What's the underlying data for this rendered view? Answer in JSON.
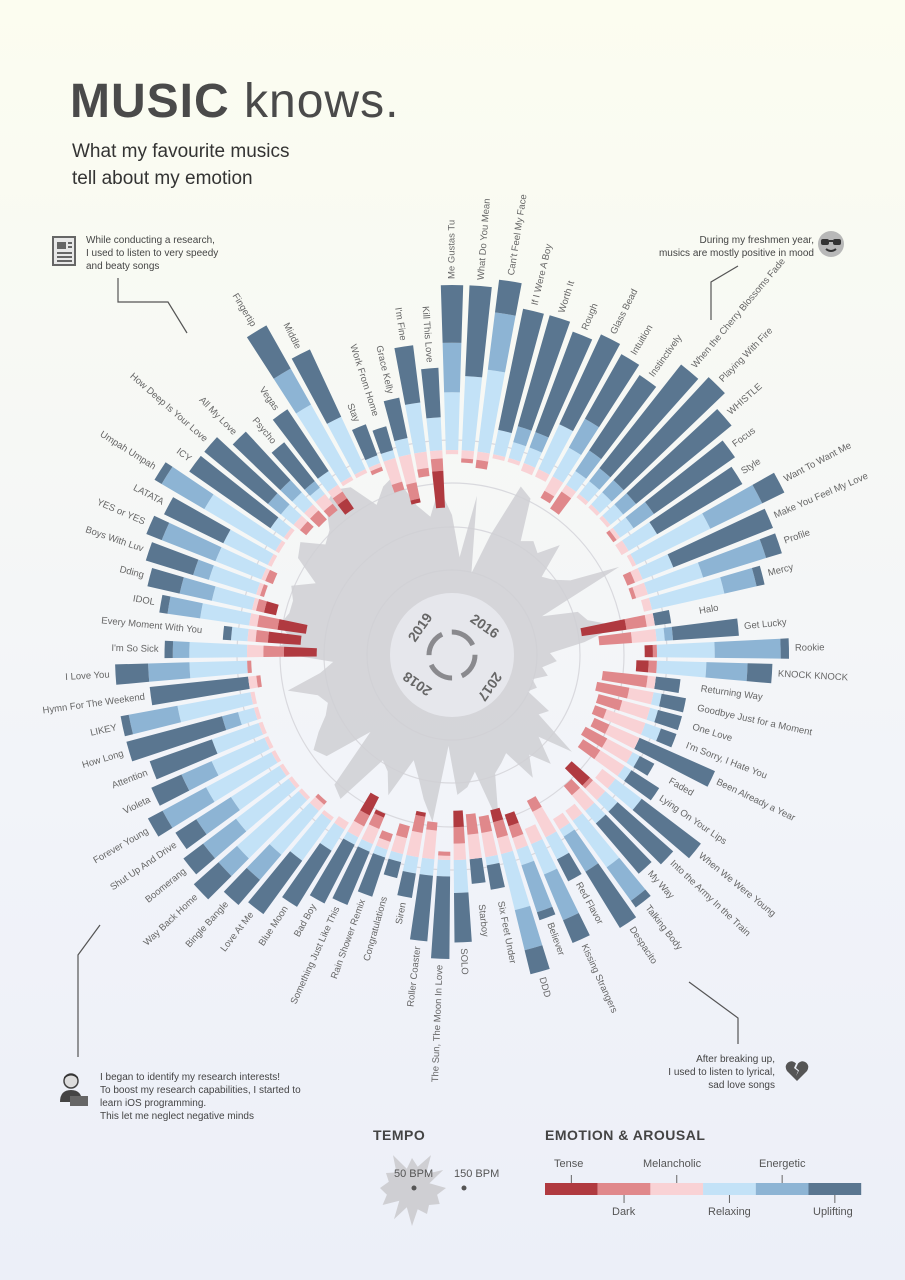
{
  "header": {
    "title_bold": "MUSIC",
    "title_rest": "knows.",
    "subtitle_line1": "What my favourite musics",
    "subtitle_line2": "tell about my emotion"
  },
  "notes": {
    "top_left": [
      "While conducting a research,",
      "I used to listen to very speedy",
      "and beaty songs"
    ],
    "top_right": [
      "During my freshmen year,",
      "musics are mostly positive in mood"
    ],
    "bottom_left": [
      "I began to identify my research interests!",
      "To boost my research capabilities, I started to",
      "learn iOS programming.",
      "This let me neglect negative minds"
    ],
    "bottom_right": [
      "After breaking up,",
      "I used to listen to lyrical,",
      "sad love songs"
    ]
  },
  "years": [
    "2016",
    "2017",
    "2018",
    "2019"
  ],
  "legend": {
    "tempo_title": "TEMPO",
    "tempo_low": "50 BPM",
    "tempo_high": "150 BPM",
    "emotion_title": "EMOTION & AROUSAL",
    "upper_labels": [
      "Tense",
      "Melancholic",
      "Energetic"
    ],
    "lower_labels": [
      "Dark",
      "Relaxing",
      "Uplifting"
    ]
  },
  "colors": {
    "tense": "#b03a40",
    "dark": "#e0888b",
    "melancholic": "#f9d2d5",
    "relaxing": "#c3e2f7",
    "energetic": "#8db4d4",
    "uplifting": "#5a7690",
    "tempo": "#cfcfd3"
  },
  "chart_data": {
    "type": "radial-bar",
    "title": "MUSIC knows.",
    "emotion_categories": [
      "Tense",
      "Dark",
      "Melancholic",
      "Relaxing",
      "Energetic",
      "Uplifting"
    ],
    "tempo_range_bpm": [
      50,
      150
    ],
    "songs": [
      {
        "name": "Me Gustas Tu",
        "neg": [
          0,
          0,
          0.05
        ],
        "pos": [
          0.35,
          0.3,
          0.35
        ],
        "bpm": 100
      },
      {
        "name": "What Do You Mean",
        "neg": [
          0,
          0.05,
          0.1
        ],
        "pos": [
          0.45,
          0,
          0.55
        ],
        "bpm": 70
      },
      {
        "name": "Can't Feel My Face",
        "neg": [
          0,
          0.1,
          0.1
        ],
        "pos": [
          0.5,
          0.35,
          0.2
        ],
        "bpm": 115
      },
      {
        "name": "If I Were A Boy",
        "neg": [
          0,
          0,
          0.05
        ],
        "pos": [
          0.15,
          0,
          0.75
        ],
        "bpm": 60
      },
      {
        "name": "Worth It",
        "neg": [
          0,
          0,
          0.05
        ],
        "pos": [
          0.1,
          0.1,
          0.7
        ],
        "bpm": 90
      },
      {
        "name": "Rough",
        "neg": [
          0,
          0,
          0.1
        ],
        "pos": [
          0.1,
          0.1,
          0.65
        ],
        "bpm": 130
      },
      {
        "name": "Glass Bead",
        "neg": [
          0,
          0,
          0.1
        ],
        "pos": [
          0.3,
          0,
          0.6
        ],
        "bpm": 125
      },
      {
        "name": "Intuition",
        "neg": [
          0,
          0.1,
          0.2
        ],
        "pos": [
          0.2,
          0.2,
          0.45
        ],
        "bpm": 95
      },
      {
        "name": "Instinctively",
        "neg": [
          0,
          0.25,
          0.1
        ],
        "pos": [
          0.1,
          0.15,
          0.55
        ],
        "bpm": 100
      },
      {
        "name": "When the Cherry Blossoms Fade",
        "neg": [
          0,
          0,
          0.05
        ],
        "pos": [
          0.1,
          0.1,
          0.8
        ],
        "bpm": 95
      },
      {
        "name": "Playing With Fire",
        "neg": [
          0,
          0,
          0.05
        ],
        "pos": [
          0.1,
          0.1,
          0.85
        ],
        "bpm": 110
      },
      {
        "name": "WHISTLE",
        "neg": [
          0,
          0,
          0.05
        ],
        "pos": [
          0.1,
          0.1,
          0.75
        ],
        "bpm": 85
      },
      {
        "name": "Focus",
        "neg": [
          0,
          0.05,
          0.05
        ],
        "pos": [
          0.1,
          0.15,
          0.6
        ],
        "bpm": 90
      },
      {
        "name": "Style",
        "neg": [
          0,
          0,
          0.1
        ],
        "pos": [
          0.2,
          0,
          0.6
        ],
        "bpm": 100
      },
      {
        "name": "Want To Want Me",
        "neg": [
          0,
          0,
          0.05
        ],
        "pos": [
          0.5,
          0.35,
          0.15
        ],
        "bpm": 135
      },
      {
        "name": "Make You Feel My Love",
        "neg": [
          0,
          0.1,
          0.1
        ],
        "pos": [
          0.2,
          0,
          0.65
        ],
        "bpm": 70
      },
      {
        "name": "Profile",
        "neg": [
          0,
          0.05,
          0.15
        ],
        "pos": [
          0.35,
          0.4,
          0.1
        ],
        "bpm": 95
      },
      {
        "name": "Mercy",
        "neg": [
          0,
          0,
          0.1
        ],
        "pos": [
          0.45,
          0.2,
          0.05
        ],
        "bpm": 100
      },
      {
        "name": "Halo",
        "neg": [
          0.55,
          0.25,
          0.1
        ],
        "pos": [
          0,
          0,
          0.1
        ],
        "bpm": 120
      },
      {
        "name": "Get Lucky",
        "neg": [
          0,
          0.4,
          0.3
        ],
        "pos": [
          0.05,
          0.05,
          0.4
        ],
        "bpm": 95
      },
      {
        "name": "Rookie",
        "neg": [
          0.1,
          0.05,
          0
        ],
        "pos": [
          0.35,
          0.4,
          0.05
        ],
        "bpm": 70
      },
      {
        "name": "KNOCK KNOCK",
        "neg": [
          0.15,
          0.1,
          0
        ],
        "pos": [
          0.3,
          0.25,
          0.15
        ],
        "bpm": 75
      },
      {
        "name": "Returning Way",
        "neg": [
          0,
          0.55,
          0.1
        ],
        "pos": [
          0,
          0,
          0.15
        ],
        "bpm": 65
      },
      {
        "name": "Goodbye Just for a Moment",
        "neg": [
          0,
          0.4,
          0.3
        ],
        "pos": [
          0.05,
          0,
          0.15
        ],
        "bpm": 70
      },
      {
        "name": "One Love",
        "neg": [
          0,
          0.3,
          0.35
        ],
        "pos": [
          0.05,
          0,
          0.15
        ],
        "bpm": 60
      },
      {
        "name": "I'm Sorry, I Hate You",
        "neg": [
          0,
          0.15,
          0.5
        ],
        "pos": [
          0.1,
          0,
          0.1
        ],
        "bpm": 65
      },
      {
        "name": "Been Already a Year",
        "neg": [
          0,
          0.2,
          0.4
        ],
        "pos": [
          0,
          0,
          0.5
        ],
        "bpm": 60
      },
      {
        "name": "Faded",
        "neg": [
          0,
          0.3,
          0.35
        ],
        "pos": [
          0.05,
          0,
          0.1
        ],
        "bpm": 80
      },
      {
        "name": "Lying On Your Lips",
        "neg": [
          0,
          0.25,
          0.35
        ],
        "pos": [
          0.05,
          0,
          0.2
        ],
        "bpm": 75
      },
      {
        "name": "When We Were Young",
        "neg": [
          0,
          0,
          0.2
        ],
        "pos": [
          0.2,
          0,
          0.45
        ],
        "bpm": 110
      },
      {
        "name": "Into the Army In the Train",
        "neg": [
          0.3,
          0.05,
          0.2
        ],
        "pos": [
          0.1,
          0,
          0.45
        ],
        "bpm": 85
      },
      {
        "name": "My Way",
        "neg": [
          0,
          0.15,
          0.25
        ],
        "pos": [
          0.1,
          0,
          0.4
        ],
        "bpm": 105
      },
      {
        "name": "Talking Body",
        "neg": [
          0,
          0,
          0.15
        ],
        "pos": [
          0.35,
          0.25,
          0.05
        ],
        "bpm": 90
      },
      {
        "name": "Despacito",
        "neg": [
          0,
          0,
          0.15
        ],
        "pos": [
          0.05,
          0.25,
          0.4
        ],
        "bpm": 105
      },
      {
        "name": "Red Flavor",
        "neg": [
          0,
          0.15,
          0.35
        ],
        "pos": [
          0.15,
          0,
          0.15
        ],
        "bpm": 80
      },
      {
        "name": "Kissing Strangers",
        "neg": [
          0,
          0,
          0.2
        ],
        "pos": [
          0.2,
          0.3,
          0.15
        ],
        "bpm": 85
      },
      {
        "name": "Believer",
        "neg": [
          0.15,
          0.15,
          0.15
        ],
        "pos": [
          0.1,
          0.3,
          0.05
        ],
        "bpm": 90
      },
      {
        "name": "DDD",
        "neg": [
          0.15,
          0.2,
          0.2
        ],
        "pos": [
          0.35,
          0.25,
          0.15
        ],
        "bpm": 125
      },
      {
        "name": "Six Feet Under",
        "neg": [
          0,
          0.2,
          0.3
        ],
        "pos": [
          0.05,
          0,
          0.15
        ],
        "bpm": 85
      },
      {
        "name": "Starboy",
        "neg": [
          0,
          0.25,
          0.3
        ],
        "pos": [
          0,
          0,
          0.15
        ],
        "bpm": 95
      },
      {
        "name": "SOLO",
        "neg": [
          0.2,
          0.2,
          0.2
        ],
        "pos": [
          0.2,
          0,
          0.3
        ],
        "bpm": 100
      },
      {
        "name": "The Sun, The Moon In Love",
        "neg": [
          0,
          0.05,
          0.05
        ],
        "pos": [
          0.1,
          0,
          0.5
        ],
        "bpm": 65
      },
      {
        "name": "Roller Coaster",
        "neg": [
          0,
          0.1,
          0.35
        ],
        "pos": [
          0.1,
          0,
          0.4
        ],
        "bpm": 120
      },
      {
        "name": "Siren",
        "neg": [
          0.05,
          0.2,
          0.3
        ],
        "pos": [
          0.1,
          0,
          0.15
        ],
        "bpm": 105
      },
      {
        "name": "Congratulations",
        "neg": [
          0,
          0.15,
          0.2
        ],
        "pos": [
          0.05,
          0,
          0.1
        ],
        "bpm": 90
      },
      {
        "name": "Rain Shower Remix",
        "neg": [
          0,
          0.1,
          0.1
        ],
        "pos": [
          0.05,
          0,
          0.25
        ],
        "bpm": 80
      },
      {
        "name": "Something Just Like This",
        "neg": [
          0.05,
          0.15,
          0.2
        ],
        "pos": [
          0.05,
          0,
          0.35
        ],
        "bpm": 110
      },
      {
        "name": "Bad Boy",
        "neg": [
          0.25,
          0.15,
          0.15
        ],
        "pos": [
          0.05,
          0,
          0.4
        ],
        "bpm": 95
      },
      {
        "name": "Blue Moon",
        "neg": [
          0,
          0,
          0.1
        ],
        "pos": [
          0.15,
          0,
          0.4
        ],
        "bpm": 90
      },
      {
        "name": "Love At Me",
        "neg": [
          0,
          0,
          0.05
        ],
        "pos": [
          0.3,
          0,
          0.4
        ],
        "bpm": 130
      },
      {
        "name": "Bingle Bangle",
        "neg": [
          0,
          0.05,
          0.1
        ],
        "pos": [
          0.35,
          0.2,
          0.2
        ],
        "bpm": 125
      },
      {
        "name": "Way Back Home",
        "neg": [
          0,
          0,
          0.05
        ],
        "pos": [
          0.5,
          0.15,
          0.2
        ],
        "bpm": 80
      },
      {
        "name": "Boomerang",
        "neg": [
          0,
          0,
          0.05
        ],
        "pos": [
          0.4,
          0.25,
          0.15
        ],
        "bpm": 115
      },
      {
        "name": "Shut Up And Drive",
        "neg": [
          0,
          0,
          0.05
        ],
        "pos": [
          0.35,
          0.25,
          0.15
        ],
        "bpm": 120
      },
      {
        "name": "Forever Young",
        "neg": [
          0,
          0,
          0.05
        ],
        "pos": [
          0.45,
          0.3,
          0.1
        ],
        "bpm": 110
      },
      {
        "name": "Violeta",
        "neg": [
          0,
          0,
          0.05
        ],
        "pos": [
          0.35,
          0.2,
          0.2
        ],
        "bpm": 100
      },
      {
        "name": "Attention",
        "neg": [
          0,
          0,
          0.05
        ],
        "pos": [
          0.3,
          0,
          0.4
        ],
        "bpm": 95
      },
      {
        "name": "How Long",
        "neg": [
          0,
          0,
          0.05
        ],
        "pos": [
          0.1,
          0.1,
          0.6
        ],
        "bpm": 100
      },
      {
        "name": "LIKEY",
        "neg": [
          0,
          0,
          0.05
        ],
        "pos": [
          0.45,
          0.3,
          0.05
        ],
        "bpm": 120
      },
      {
        "name": "Hymn For The Weekend",
        "neg": [
          0,
          0.05,
          0.1
        ],
        "pos": [
          0,
          0,
          0.6
        ],
        "bpm": 95
      },
      {
        "name": "I Love You",
        "neg": [
          0,
          0.05,
          0
        ],
        "pos": [
          0.35,
          0.25,
          0.2
        ],
        "bpm": 85
      },
      {
        "name": "I'm So Sick",
        "neg": [
          0.4,
          0.25,
          0.2
        ],
        "pos": [
          0.35,
          0.1,
          0.05
        ],
        "bpm": 130
      },
      {
        "name": "Every Moment With You",
        "neg": [
          0.4,
          0.15,
          0.1
        ],
        "pos": [
          0.1,
          0,
          0.05
        ],
        "bpm": 115
      },
      {
        "name": "IDOL",
        "neg": [
          0.35,
          0.25,
          0.1
        ],
        "pos": [
          0.3,
          0.2,
          0.05
        ],
        "bpm": 125
      },
      {
        "name": "Dding",
        "neg": [
          0.15,
          0.1,
          0.05
        ],
        "pos": [
          0.25,
          0.2,
          0.2
        ],
        "bpm": 120
      },
      {
        "name": "Boys With Luv",
        "neg": [
          0,
          0.05,
          0.05
        ],
        "pos": [
          0.3,
          0.1,
          0.3
        ],
        "bpm": 120
      },
      {
        "name": "YES or YES",
        "neg": [
          0,
          0.1,
          0.05
        ],
        "pos": [
          0.3,
          0.35,
          0.1
        ],
        "bpm": 125
      },
      {
        "name": "LATATA",
        "neg": [
          0,
          0,
          0.05
        ],
        "pos": [
          0.3,
          0,
          0.4
        ],
        "bpm": 110
      },
      {
        "name": "Umpah Umpah",
        "neg": [
          0,
          0,
          0.05
        ],
        "pos": [
          0.5,
          0.3,
          0.05
        ],
        "bpm": 130
      },
      {
        "name": "ICY",
        "neg": [
          0,
          0,
          0.05
        ],
        "pos": [
          0.1,
          0,
          0.6
        ],
        "bpm": 135
      },
      {
        "name": "How Deep Is Your Love",
        "neg": [
          0,
          0.1,
          0.1
        ],
        "pos": [
          0.1,
          0.1,
          0.5
        ],
        "bpm": 120
      },
      {
        "name": "All My Love",
        "neg": [
          0,
          0.15,
          0.1
        ],
        "pos": [
          0.1,
          0.1,
          0.4
        ],
        "bpm": 125
      },
      {
        "name": "Psycho",
        "neg": [
          0,
          0.1,
          0.15
        ],
        "pos": [
          0.05,
          0.05,
          0.3
        ],
        "bpm": 140
      },
      {
        "name": "Vegas",
        "neg": [
          0.15,
          0.1,
          0.1
        ],
        "pos": [
          0.1,
          0,
          0.45
        ],
        "bpm": 145
      },
      {
        "name": "Fingertip",
        "neg": [
          0,
          0,
          0.05
        ],
        "pos": [
          0.5,
          0.25,
          0.3
        ],
        "bpm": 140
      },
      {
        "name": "Middle",
        "neg": [
          0,
          0,
          0.05
        ],
        "pos": [
          0.35,
          0,
          0.45
        ],
        "bpm": 120
      },
      {
        "name": "Stay",
        "neg": [
          0,
          0.05,
          0.05
        ],
        "pos": [
          0.05,
          0,
          0.2
        ],
        "bpm": 130
      },
      {
        "name": "Work From Home",
        "neg": [
          0,
          0.1,
          0.3
        ],
        "pos": [
          0.05,
          0,
          0.15
        ],
        "bpm": 135
      },
      {
        "name": "Grace Kelly",
        "neg": [
          0.05,
          0.2,
          0.35
        ],
        "pos": [
          0.1,
          0,
          0.25
        ],
        "bpm": 110
      },
      {
        "name": "I'm Fine",
        "neg": [
          0,
          0.1,
          0.2
        ],
        "pos": [
          0.3,
          0,
          0.35
        ],
        "bpm": 100
      },
      {
        "name": "Kill This Love",
        "neg": [
          0.45,
          0.15,
          0.1
        ],
        "pos": [
          0.2,
          0,
          0.3
        ],
        "bpm": 120
      }
    ]
  }
}
